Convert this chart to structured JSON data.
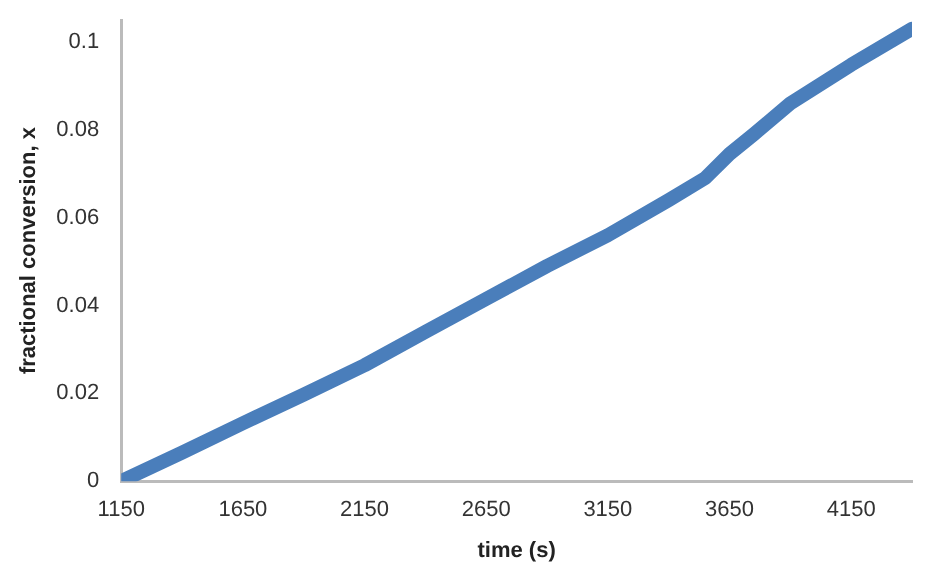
{
  "chart_data": {
    "type": "line",
    "xlabel": "time (s)",
    "ylabel": "fractional conversion, x",
    "x": [
      1150,
      1400,
      1650,
      1900,
      2150,
      2400,
      2650,
      2900,
      3150,
      3400,
      3550,
      3650,
      3750,
      3900,
      4150,
      4400
    ],
    "series": [
      {
        "color": "#4a7ebb",
        "values": [
          0,
          0.0065,
          0.0132,
          0.0197,
          0.0264,
          0.034,
          0.0415,
          0.049,
          0.056,
          0.064,
          0.069,
          0.0745,
          0.079,
          0.086,
          0.0948,
          0.103
        ]
      }
    ],
    "xlim": [
      1150,
      4400
    ],
    "xticks": [
      1150,
      1650,
      2150,
      2650,
      3150,
      3650,
      4150
    ],
    "ylim": [
      0,
      0.105
    ],
    "yticks": [
      0,
      0.02,
      0.04,
      0.06,
      0.08,
      0.1
    ],
    "grid": false,
    "legend": false,
    "marker": "none",
    "line_style": "solid"
  }
}
